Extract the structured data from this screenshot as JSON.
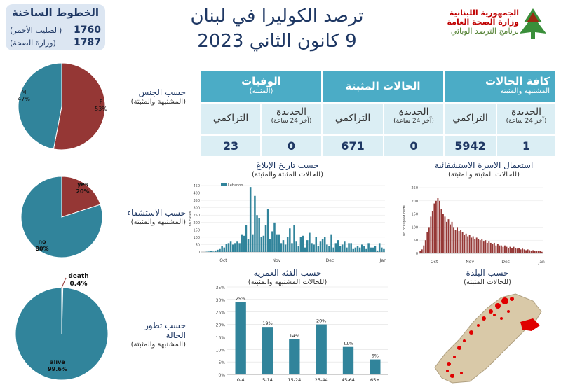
{
  "hotlines": {
    "title": "الخطوط الساخنة",
    "lines": [
      {
        "number": "1760",
        "name": "(الصليب الأحمر)"
      },
      {
        "number": "1787",
        "name": "(وزارة الصحة)"
      }
    ]
  },
  "title": {
    "line1": "ترصد الكوليرا في لبنان",
    "line2": "9 كانون الثاني 2023"
  },
  "logo": {
    "line1": "الجمهورية اللبنانية",
    "line2": "وزارة الصحة العامة",
    "line3": "برنامج الترصد الوبائي"
  },
  "stats_table": {
    "groups": [
      {
        "title": "كافة الحالات",
        "subtitle": "المشتبهة والمثبتة"
      },
      {
        "title": "الحالات المثبتة",
        "subtitle": ""
      },
      {
        "title": "الوفيات",
        "subtitle": "(المثبتة)"
      }
    ],
    "new_label": "الجديدة",
    "new_sub": "(آخر 24 ساعة)",
    "cumulative_label": "التراكمي",
    "values": {
      "all_new": "1",
      "all_cumulative": "5942",
      "confirmed_new": "0",
      "confirmed_cumulative": "671",
      "deaths_new": "0",
      "deaths_cumulative": "23"
    }
  },
  "labels": {
    "gender": {
      "main": "حسب الجنس",
      "sub": "(المشتبهة والمثبتة)"
    },
    "hospital": {
      "main": "حسب الاستشفاء",
      "sub": "(المشتبهة والمثبتة)"
    },
    "outcome": {
      "main": "حسب تطور",
      "main2": "الحالة",
      "sub": "(المشتبهة والمثبتة)"
    },
    "report_date": {
      "main": "حسب تاريخ الإبلاغ",
      "sub": "(للحالات المثبتة والمثبتة)"
    },
    "hosp_beds": {
      "main": "استعمال الاسرة الاستشفائية",
      "sub": "(للحالات المثبتة والمثبتة)"
    },
    "age": {
      "main": "حسب الفئة العمرية",
      "sub": "(للحالات المشتبهة والمثبتة)"
    },
    "town": {
      "main": "حسب البلدة",
      "sub": "(للحالات المثبتة)"
    }
  },
  "colors": {
    "red": "#953735",
    "teal": "#31849b",
    "blue_dark": "#1f3864"
  },
  "chart_data": [
    {
      "id": "gender_pie",
      "type": "pie",
      "slices": [
        {
          "label": "F",
          "value": 53,
          "text": "F\n53%"
        },
        {
          "label": "M",
          "value": 47,
          "text": "M\n47%"
        }
      ]
    },
    {
      "id": "hospital_pie",
      "type": "pie",
      "slices": [
        {
          "label": "yes",
          "value": 20,
          "text": "20%"
        },
        {
          "label": "no",
          "value": 80,
          "text": "80%"
        }
      ]
    },
    {
      "id": "outcome_pie",
      "type": "pie",
      "slices": [
        {
          "label": "death",
          "value": 0.4,
          "text": "0.4%"
        },
        {
          "label": "alive",
          "value": 99.6,
          "text": "99.6%"
        }
      ]
    },
    {
      "id": "age_bar",
      "type": "bar",
      "categories": [
        "0-4",
        "5-14",
        "15-24",
        "25-44",
        "45-64",
        "65+"
      ],
      "values": [
        29,
        19,
        14,
        20,
        11,
        6
      ],
      "value_labels": [
        "29%",
        "19%",
        "14%",
        "20%",
        "11%",
        "6%"
      ],
      "ylim": [
        0,
        35
      ],
      "yticks": [
        "0%",
        "5%",
        "10%",
        "15%",
        "20%",
        "25%",
        "30%",
        "35%"
      ]
    },
    {
      "id": "report_date_bar",
      "type": "bar",
      "legend": "Lebanon",
      "ylabel": "nb cases",
      "xticks": [
        "Oct",
        "Nov",
        "Dec",
        "Jan"
      ],
      "yticks": [
        "0",
        "50",
        "100",
        "150",
        "200",
        "250",
        "300",
        "350",
        "400",
        "450"
      ],
      "ylim": [
        0,
        450
      ],
      "values": [
        0,
        0,
        2,
        3,
        5,
        3,
        10,
        15,
        20,
        40,
        30,
        55,
        60,
        70,
        50,
        60,
        70,
        60,
        120,
        110,
        180,
        90,
        440,
        120,
        380,
        250,
        230,
        100,
        110,
        180,
        290,
        90,
        140,
        200,
        120,
        120,
        60,
        80,
        50,
        100,
        160,
        60,
        180,
        70,
        40,
        100,
        110,
        30,
        80,
        130,
        60,
        50,
        100,
        40,
        70,
        90,
        100,
        50,
        40,
        120,
        30,
        60,
        80,
        40,
        50,
        70,
        30,
        60,
        60,
        20,
        30,
        40,
        30,
        50,
        40,
        20,
        60,
        30,
        30,
        40,
        10,
        60,
        30,
        20
      ]
    },
    {
      "id": "hosp_beds_bar",
      "type": "bar",
      "ylabel": "nb occupied beds",
      "xticks": [
        "Oct",
        "Nov",
        "Dec",
        "Jan"
      ],
      "yticks": [
        "0",
        "50",
        "100",
        "150",
        "200",
        "250"
      ],
      "ylim": [
        0,
        250
      ],
      "values": [
        10,
        15,
        30,
        50,
        80,
        100,
        140,
        160,
        190,
        200,
        210,
        200,
        170,
        150,
        140,
        120,
        130,
        110,
        120,
        100,
        90,
        100,
        85,
        90,
        80,
        70,
        75,
        65,
        70,
        60,
        65,
        55,
        60,
        55,
        50,
        55,
        45,
        50,
        40,
        45,
        40,
        35,
        40,
        30,
        35,
        30,
        30,
        25,
        30,
        25,
        20,
        25,
        20,
        25,
        20,
        18,
        20,
        15,
        18,
        15,
        12,
        15,
        12,
        10,
        12,
        10,
        8,
        10,
        8,
        6
      ]
    }
  ]
}
